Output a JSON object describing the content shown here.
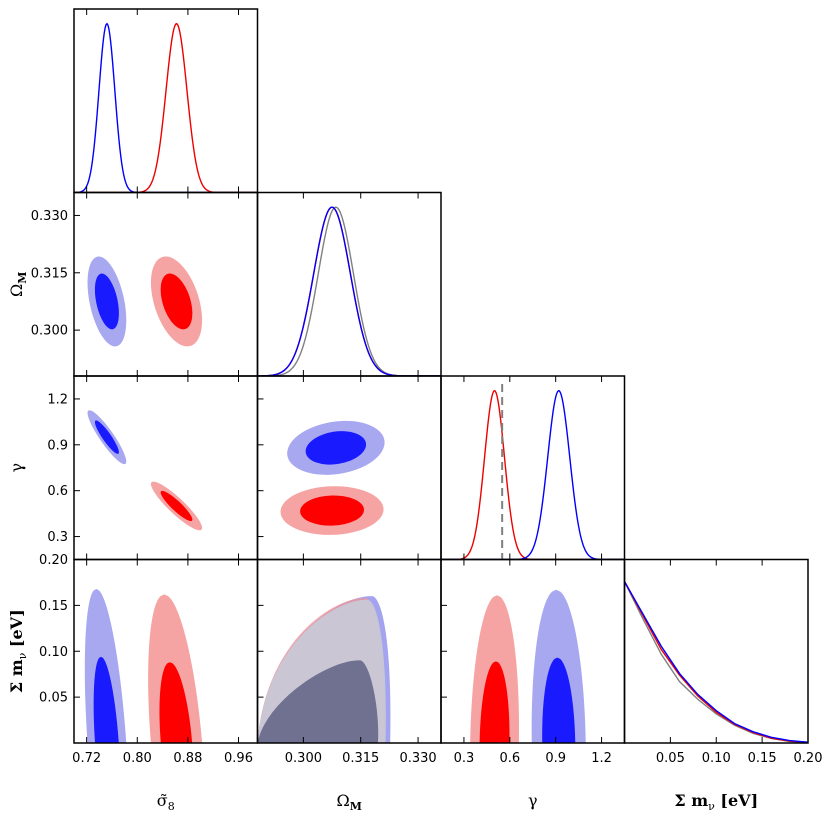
{
  "chart_data": {
    "type": "triangle-corner",
    "parameters": [
      {
        "key": "sigma8",
        "label": "σ̃",
        "label_sub": "8",
        "range": [
          0.7,
          0.99
        ],
        "ticks": [
          0.72,
          0.8,
          0.88,
          0.96
        ],
        "tick_labels": [
          "0.72",
          "0.80",
          "0.88",
          "0.96"
        ]
      },
      {
        "key": "omegam",
        "label": "Ω",
        "label_sub": "M",
        "range": [
          0.288,
          0.336
        ],
        "ticks": [
          0.3,
          0.315,
          0.33
        ],
        "tick_labels": [
          "0.300",
          "0.315",
          "0.330"
        ]
      },
      {
        "key": "gamma",
        "label": "γ",
        "label_sub": "",
        "range": [
          0.15,
          1.35
        ],
        "ticks": [
          0.3,
          0.6,
          0.9,
          1.2
        ],
        "tick_labels": [
          "0.3",
          "0.6",
          "0.9",
          "1.2"
        ]
      },
      {
        "key": "mnu",
        "label": "Σ m",
        "label_sub": "ν",
        "label_suffix": "[eV]",
        "range": [
          0.0,
          0.2
        ],
        "ticks": [
          0.05,
          0.1,
          0.15,
          0.2
        ],
        "tick_labels": [
          "0.05",
          "0.10",
          "0.15",
          "0.20"
        ]
      }
    ],
    "series": [
      {
        "color": "#0000ff",
        "fill_inner": "#1a1aff",
        "fill_outer": "#9999ee",
        "sigma8": {
          "mean": 0.752,
          "sd": 0.0125
        },
        "omegam": {
          "mean": 0.3075,
          "sd": 0.0048
        },
        "gamma": {
          "mean": 0.92,
          "sd": 0.072
        }
      },
      {
        "color": "#ee0000",
        "fill_inner": "#ff0000",
        "fill_outer": "#f49393",
        "sigma8": {
          "mean": 0.862,
          "sd": 0.0165
        },
        "omegam": {
          "mean": 0.3075,
          "sd": 0.0048
        },
        "gamma": {
          "mean": 0.5,
          "sd": 0.065
        }
      },
      {
        "color": "#808080",
        "fill_inner": "#707090",
        "fill_outer": "#c8c8d6",
        "omegam": {
          "mean": 0.3085,
          "sd": 0.0046
        }
      }
    ],
    "contours": {
      "sigma8_omegam": [
        {
          "series": 0,
          "center": [
            0.752,
            0.3075
          ],
          "sx": 0.0125,
          "sy": 0.0048,
          "rho": -0.42
        },
        {
          "series": 1,
          "center": [
            0.862,
            0.3075
          ],
          "sx": 0.0165,
          "sy": 0.0048,
          "rho": -0.42
        }
      ],
      "sigma8_gamma": [
        {
          "series": 0,
          "center": [
            0.752,
            0.95
          ],
          "sx": 0.0125,
          "sy": 0.072,
          "rho": -0.9
        },
        {
          "series": 1,
          "center": [
            0.862,
            0.5
          ],
          "sx": 0.0165,
          "sy": 0.065,
          "rho": -0.9
        }
      ],
      "omegam_gamma": [
        {
          "series": 0,
          "center": [
            0.3085,
            0.88
          ],
          "sx": 0.0052,
          "sy": 0.072,
          "rho": 0.2
        },
        {
          "series": 1,
          "center": [
            0.3075,
            0.47
          ],
          "sx": 0.0055,
          "sy": 0.065,
          "rho": 0.05
        }
      ]
    },
    "mnu_marginal": {
      "x": [
        0.0,
        0.02,
        0.04,
        0.06,
        0.08,
        0.1,
        0.12,
        0.14,
        0.16,
        0.18,
        0.2
      ],
      "series_y": [
        [
          1.0,
          0.8,
          0.6,
          0.43,
          0.3,
          0.2,
          0.12,
          0.07,
          0.035,
          0.015,
          0.005
        ],
        [
          1.0,
          0.79,
          0.58,
          0.42,
          0.29,
          0.19,
          0.115,
          0.065,
          0.03,
          0.012,
          0.004
        ],
        [
          1.0,
          0.77,
          0.55,
          0.38,
          0.27,
          0.18,
          0.11,
          0.06,
          0.028,
          0.01,
          0.003
        ]
      ]
    },
    "mnu_bounds": {
      "sigma8": [
        {
          "series": 0,
          "center": 0.752,
          "sd": 0.0125,
          "tilt": -0.1,
          "m95": 0.168,
          "m68": 0.094
        },
        {
          "series": 1,
          "center": 0.862,
          "sd": 0.0165,
          "tilt": -0.12,
          "m95": 0.162,
          "m68": 0.088
        }
      ],
      "gamma": [
        {
          "series": 1,
          "center": 0.5,
          "sd": 0.065,
          "tilt": 0.1,
          "m95": 0.161,
          "m68": 0.089
        },
        {
          "series": 0,
          "center": 0.92,
          "sd": 0.072,
          "tilt": -0.1,
          "m95": 0.167,
          "m68": 0.093
        }
      ]
    },
    "omegam_mnu": {
      "anchor": [
        0.288,
        0.0
      ],
      "top_outer": [
        0.317,
        0.16
      ],
      "top_inner": [
        0.315,
        0.09
      ]
    },
    "reference_line": {
      "parameter": "gamma",
      "value": 0.55,
      "style": "dashed",
      "color": "#808080"
    },
    "grid": false
  }
}
